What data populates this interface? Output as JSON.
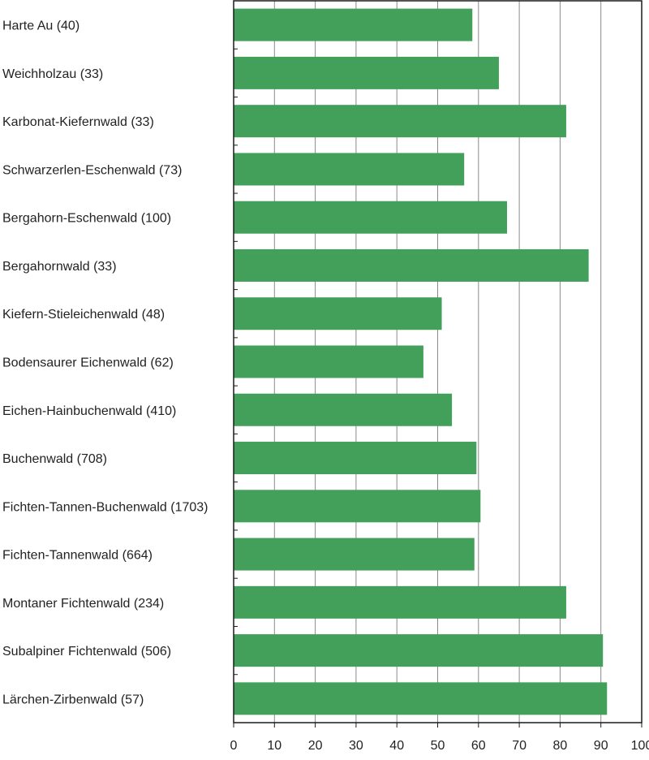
{
  "chart_data": {
    "type": "bar",
    "orientation": "horizontal",
    "title": "",
    "xlabel": "",
    "ylabel": "",
    "xlim": [
      0,
      100
    ],
    "x_ticks": [
      "0",
      "10",
      "20",
      "30",
      "40",
      "50",
      "60",
      "70",
      "80",
      "90",
      "100"
    ],
    "grid": true,
    "bar_color": "#43a05a",
    "categories": [
      "Harte Au (40)",
      "Weichholzau (33)",
      "Karbonat-Kiefernwald (33)",
      "Schwarzerlen-Eschenwald (73)",
      "Bergahorn-Eschenwald (100)",
      "Bergahornwald (33)",
      "Kiefern-Stieleichenwald (48)",
      "Bodensaurer Eichenwald (62)",
      "Eichen-Hainbuchenwald (410)",
      "Buchenwald (708)",
      "Fichten-Tannen-Buchenwald (1703)",
      "Fichten-Tannenwald (664)",
      "Montaner Fichtenwald (234)",
      "Subalpiner Fichtenwald (506)",
      "Lärchen-Zirbenwald (57)"
    ],
    "values": [
      58.5,
      65,
      81.5,
      56.5,
      67,
      87,
      51,
      46.5,
      53.5,
      59.5,
      60.5,
      59,
      81.5,
      90.5,
      91.5
    ]
  }
}
